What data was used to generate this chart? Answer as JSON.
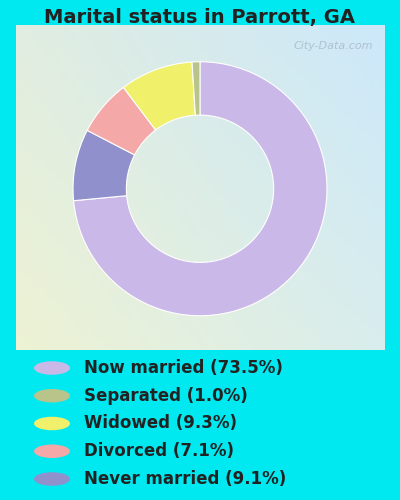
{
  "title": "Marital status in Parrott, GA",
  "slices": [
    73.5,
    9.1,
    7.1,
    9.3,
    1.0
  ],
  "labels": [
    "Now married (73.5%)",
    "Separated (1.0%)",
    "Widowed (9.3%)",
    "Divorced (7.1%)",
    "Never married (9.1%)"
  ],
  "legend_colors": [
    "#c9b8e8",
    "#b8c48a",
    "#f0f06a",
    "#f4a8a8",
    "#9090cc"
  ],
  "pie_colors": [
    "#c9b8e8",
    "#9090cc",
    "#f4a8a8",
    "#f0f06a",
    "#b8c48a"
  ],
  "background_color": "#00e8f0",
  "title_fontsize": 14,
  "legend_fontsize": 12,
  "watermark": "City-Data.com"
}
